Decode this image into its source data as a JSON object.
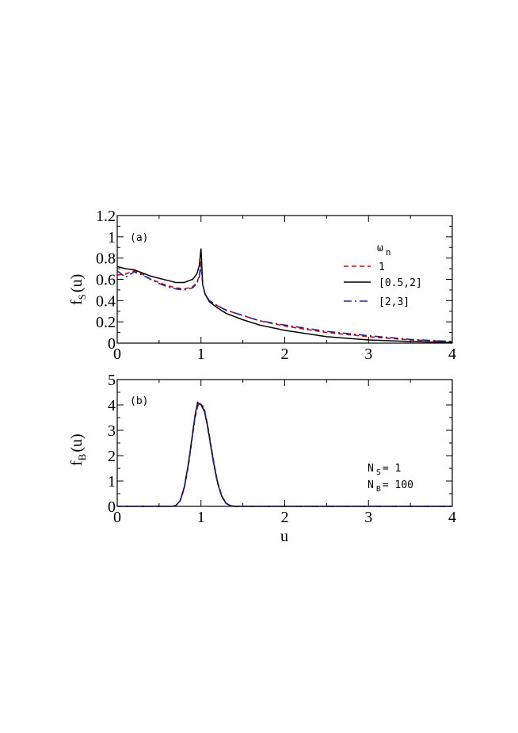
{
  "chart_data": [
    {
      "type": "line",
      "panel_label": "(a)",
      "ylabel_main": "f",
      "ylabel_sub": "S",
      "ylabel_arg": "(u)",
      "xlim": [
        0,
        4
      ],
      "ylim": [
        0,
        1.2
      ],
      "x_ticks": [
        "0",
        "1",
        "2",
        "3",
        "4"
      ],
      "y_ticks": [
        "0",
        "0.2",
        "0.4",
        "0.6",
        "0.8",
        "1",
        "1.2"
      ],
      "legend_title_main": "ω",
      "legend_title_sub": "n",
      "legend_placement": "right",
      "series": [
        {
          "name": "1",
          "color": "#e00000",
          "dash": "dashed",
          "x": [
            0,
            0.1,
            0.2,
            0.3,
            0.4,
            0.5,
            0.6,
            0.7,
            0.8,
            0.9,
            0.95,
            0.98,
            1.0,
            1.02,
            1.05,
            1.1,
            1.2,
            1.3,
            1.5,
            1.7,
            2.0,
            2.5,
            3.0,
            3.5,
            4.0
          ],
          "y": [
            0.64,
            0.65,
            0.68,
            0.65,
            0.6,
            0.57,
            0.54,
            0.52,
            0.51,
            0.53,
            0.57,
            0.63,
            0.78,
            0.55,
            0.46,
            0.4,
            0.35,
            0.31,
            0.26,
            0.21,
            0.16,
            0.1,
            0.06,
            0.03,
            0.015
          ]
        },
        {
          "name": "[0.5,2]",
          "color": "#000000",
          "dash": "solid",
          "x": [
            0,
            0.1,
            0.2,
            0.3,
            0.4,
            0.5,
            0.6,
            0.7,
            0.8,
            0.9,
            0.95,
            0.98,
            1.0,
            1.02,
            1.05,
            1.1,
            1.2,
            1.3,
            1.5,
            1.7,
            2.0,
            2.5,
            3.0,
            3.5,
            4.0
          ],
          "y": [
            0.72,
            0.7,
            0.69,
            0.66,
            0.63,
            0.61,
            0.59,
            0.57,
            0.57,
            0.6,
            0.65,
            0.73,
            0.89,
            0.55,
            0.46,
            0.39,
            0.33,
            0.28,
            0.22,
            0.17,
            0.12,
            0.06,
            0.03,
            0.015,
            0.005
          ]
        },
        {
          "name": "[2,3]",
          "color": "#1a2a8a",
          "dash": "dashdot",
          "x": [
            0,
            0.05,
            0.1,
            0.2,
            0.3,
            0.4,
            0.5,
            0.6,
            0.7,
            0.8,
            0.9,
            0.95,
            0.98,
            1.0,
            1.02,
            1.05,
            1.1,
            1.2,
            1.3,
            1.5,
            1.7,
            2.0,
            2.5,
            3.0,
            3.5,
            4.0
          ],
          "y": [
            0.68,
            0.65,
            0.62,
            0.67,
            0.64,
            0.6,
            0.56,
            0.53,
            0.51,
            0.5,
            0.52,
            0.56,
            0.62,
            0.74,
            0.55,
            0.46,
            0.4,
            0.35,
            0.31,
            0.26,
            0.21,
            0.17,
            0.11,
            0.07,
            0.035,
            0.015
          ]
        }
      ]
    },
    {
      "type": "line",
      "panel_label": "(b)",
      "ylabel_main": "f",
      "ylabel_sub": "B",
      "ylabel_arg": "(u)",
      "xlabel": "u",
      "xlim": [
        0,
        4
      ],
      "ylim": [
        0,
        5
      ],
      "x_ticks": [
        "0",
        "1",
        "2",
        "3",
        "4"
      ],
      "y_ticks": [
        "0",
        "1",
        "2",
        "3",
        "4",
        "5"
      ],
      "annotation_1": {
        "main": "N",
        "sub": "S",
        "value": "= 1"
      },
      "annotation_2": {
        "main": "N",
        "sub": "B",
        "value": "= 100"
      },
      "series": [
        {
          "color": "#e00000",
          "dash": "dashed",
          "x": [
            0,
            0.65,
            0.7,
            0.75,
            0.8,
            0.85,
            0.9,
            0.93,
            0.96,
            1.0,
            1.04,
            1.08,
            1.12,
            1.16,
            1.2,
            1.25,
            1.3,
            1.35,
            1.4,
            4.0
          ],
          "y": [
            0,
            0,
            0.03,
            0.2,
            0.7,
            1.6,
            2.8,
            3.5,
            3.95,
            4.05,
            3.8,
            3.2,
            2.4,
            1.6,
            0.95,
            0.4,
            0.13,
            0.03,
            0,
            0
          ]
        },
        {
          "color": "#000000",
          "dash": "solid",
          "x": [
            0,
            0.65,
            0.7,
            0.75,
            0.8,
            0.85,
            0.9,
            0.93,
            0.96,
            1.0,
            1.04,
            1.08,
            1.12,
            1.16,
            1.2,
            1.25,
            1.3,
            1.35,
            1.4,
            4.0
          ],
          "y": [
            0,
            0,
            0.03,
            0.22,
            0.75,
            1.7,
            2.9,
            3.6,
            4.1,
            4.0,
            3.75,
            3.15,
            2.35,
            1.55,
            0.9,
            0.38,
            0.12,
            0.03,
            0,
            0
          ]
        },
        {
          "color": "#1a2a8a",
          "dash": "dashdot",
          "x": [
            0,
            0.65,
            0.7,
            0.75,
            0.8,
            0.85,
            0.9,
            0.93,
            0.96,
            1.0,
            1.04,
            1.08,
            1.12,
            1.16,
            1.2,
            1.25,
            1.3,
            1.35,
            1.4,
            4.0
          ],
          "y": [
            0,
            0,
            0.03,
            0.2,
            0.72,
            1.65,
            2.85,
            3.55,
            4.0,
            4.08,
            3.85,
            3.1,
            2.3,
            1.5,
            0.88,
            0.36,
            0.11,
            0.03,
            0,
            0
          ]
        }
      ]
    }
  ]
}
